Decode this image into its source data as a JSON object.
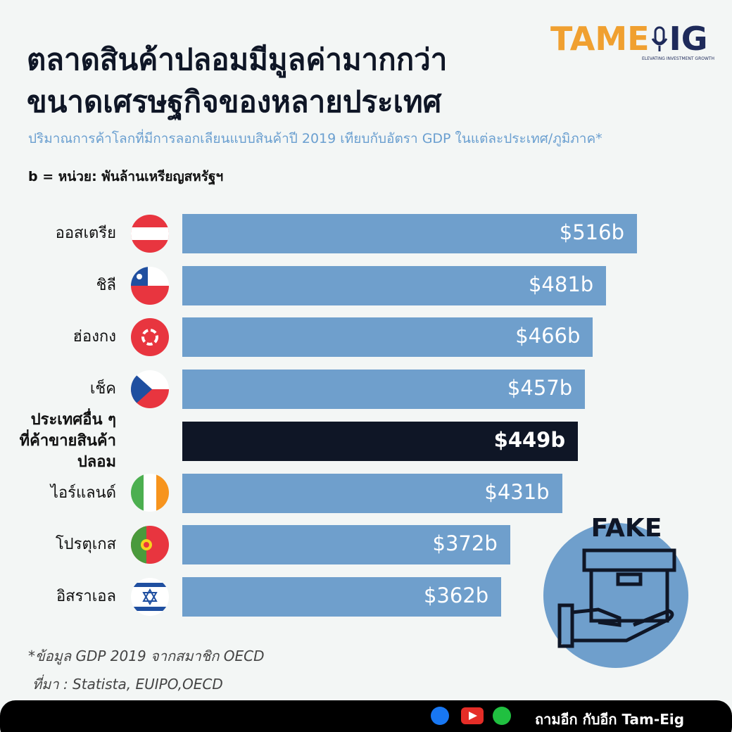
{
  "header": {
    "title_lines": [
      "ตลาดสินค้าปลอมมีมูลค่ามากกว่า",
      "ขนาดเศรษฐกิจของหลายประเทศ"
    ],
    "subtitle": "ปริมาณการค้าโลกที่มีการลอกเลียนแบบสินค้าปี 2019 เทียบกับอัตรา GDP ในแต่ละประเทศ/ภูมิภาค*",
    "unit_note": "b = หน่วย: พันล้านเหรียญสหรัฐฯ"
  },
  "logo": {
    "left": "TAME",
    "right": "IG",
    "tagline": "ELEVATING INVESTMENT GROWTH"
  },
  "chart_data": {
    "type": "bar",
    "orientation": "horizontal",
    "categories": [
      "ออสเตรีย",
      "ชิลี",
      "ฮ่องกง",
      "เช็ค",
      "ประเทศอื่น ๆ\nที่ค้าขายสินค้าปลอม",
      "ไอร์แลนด์",
      "โปรตุเกส",
      "อิสราเอล"
    ],
    "values": [
      516,
      481,
      466,
      457,
      449,
      431,
      372,
      362
    ],
    "value_labels": [
      "$516b",
      "$481b",
      "$466b",
      "$457b",
      "$449b",
      "$431b",
      "$372b",
      "$362b"
    ],
    "colors": [
      "#6f9fcc",
      "#6f9fcc",
      "#6f9fcc",
      "#6f9fcc",
      "#0f1626",
      "#6f9fcc",
      "#6f9fcc",
      "#6f9fcc"
    ]
  },
  "illustration_text": "FAKE",
  "notes": [
    "*ข้อมูล GDP 2019 จากสมาชิก OECD",
    "ที่มา : Statista, EUIPO,OECD"
  ],
  "footer": "ถามอีก กับอีก Tam-Eig"
}
